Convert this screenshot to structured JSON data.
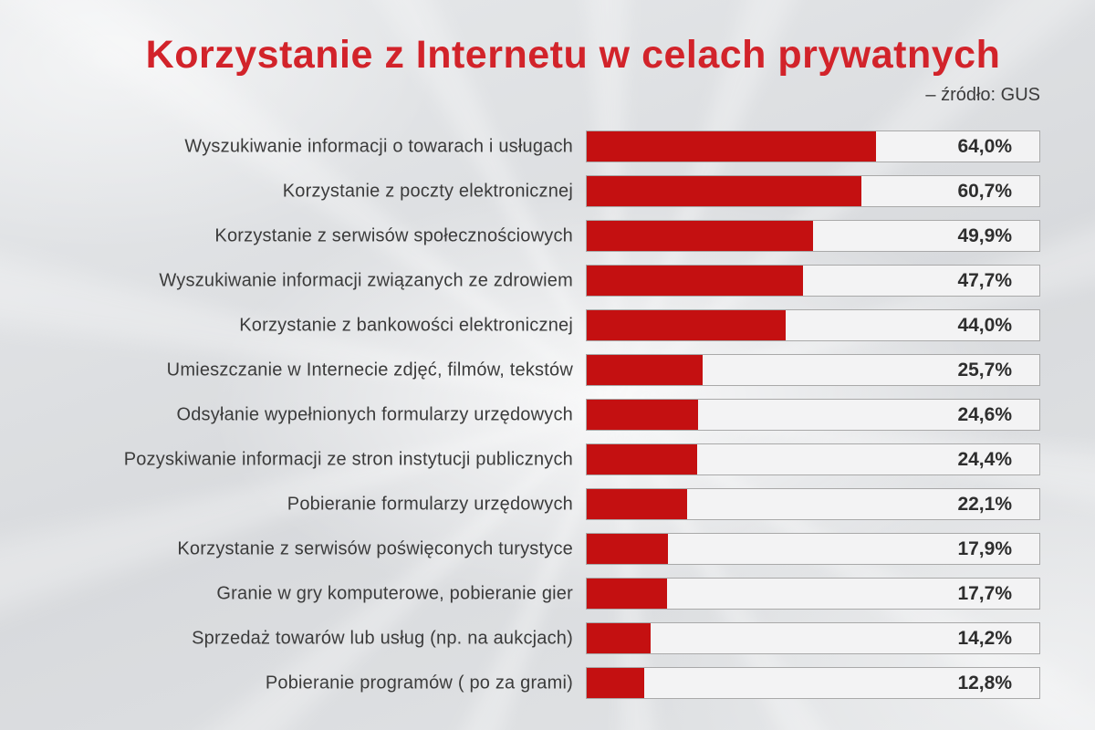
{
  "header": {
    "title": "Korzystanie z Internetu w celach prywatnych",
    "source": "– źródło: GUS"
  },
  "colors": {
    "title_red": "#d2232a",
    "bar_red": "#c41011",
    "track_bg": "#f3f3f4",
    "track_border": "#a9a9a9",
    "label_gray": "#3b3b3b",
    "value_dark": "#2e2e2e",
    "background_gray": "#dfe1e4"
  },
  "chart_data": {
    "type": "bar",
    "orientation": "horizontal",
    "title": "Korzystanie z Internetu w celach prywatnych",
    "source": "– źródło: GUS",
    "unit": "%",
    "xlim": [
      0,
      100
    ],
    "grid": false,
    "legend": false,
    "categories": [
      "Wyszukiwanie informacji o towarach i usługach",
      "Korzystanie z poczty elektronicznej",
      "Korzystanie z serwisów społecznościowych",
      "Wyszukiwanie informacji związanych ze zdrowiem",
      "Korzystanie z bankowości elektronicznej",
      "Umieszczanie w Internecie zdjęć, filmów, tekstów",
      "Odsyłanie wypełnionych formularzy urzędowych",
      "Pozyskiwanie informacji ze stron instytucji publicznych",
      "Pobieranie formularzy urzędowych",
      "Korzystanie z serwisów poświęconych turystyce",
      "Granie w gry komputerowe, pobieranie gier",
      "Sprzedaż towarów lub usług (np. na aukcjach)",
      "Pobieranie programów ( po za grami)"
    ],
    "values": [
      64.0,
      60.7,
      49.9,
      47.7,
      44.0,
      25.7,
      24.6,
      24.4,
      22.1,
      17.9,
      17.7,
      14.2,
      12.8
    ],
    "value_labels": [
      "64,0%",
      "60,7%",
      "49,9%",
      "47,7%",
      "44,0%",
      "25,7%",
      "24,6%",
      "24,4%",
      "22,1%",
      "17,9%",
      "17,7%",
      "14,2%",
      "12,8%"
    ]
  }
}
